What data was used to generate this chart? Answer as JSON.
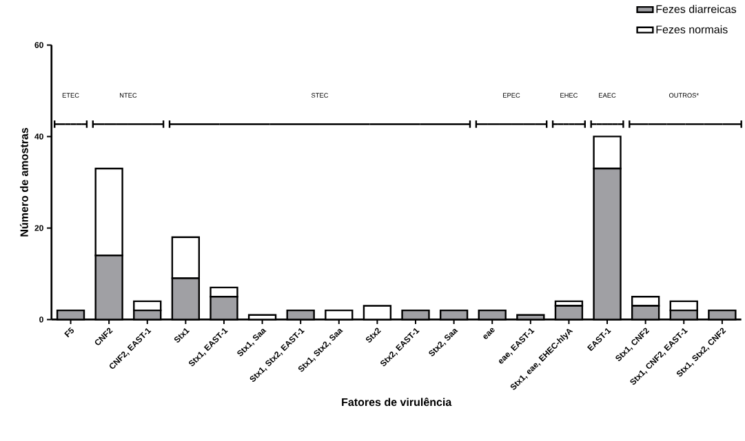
{
  "chart_data": {
    "type": "bar",
    "stacked": true,
    "xlabel": "Fatores de virulência",
    "ylabel": "Número de amostras",
    "categories": [
      "F5",
      "CNF2",
      "CNF2, EAST-1",
      "Stx1",
      "Stx1, EAST-1",
      "Stx1, Saa",
      "Stx1, Stx2, EAST-1",
      "Stx1, Stx2, Saa",
      "Stx2",
      "Stx2, EAST-1",
      "Stx2, Saa",
      "eae",
      "eae, EAST-1",
      "Stx1, eae, EHEC-hlyA",
      "EAST-1",
      "Stx1, CNF2",
      "Stx1, CNF2, EAST-1",
      "Stx1, Stx2, CNF2"
    ],
    "series": [
      {
        "name": "Fezes diarreicas",
        "color": "#a0a0a4",
        "values": [
          2,
          14,
          2,
          9,
          5,
          0,
          2,
          0,
          0,
          2,
          2,
          2,
          1,
          3,
          33,
          3,
          2,
          2
        ]
      },
      {
        "name": "Fezes normais",
        "color": "#ffffff",
        "values": [
          0,
          19,
          2,
          9,
          2,
          1,
          0,
          2,
          3,
          0,
          0,
          0,
          0,
          1,
          7,
          2,
          2,
          0
        ]
      }
    ],
    "ylim": [
      0,
      60
    ],
    "yticks": [
      0,
      20,
      40,
      60
    ],
    "grid": false,
    "legend": "top right",
    "annotations": [
      "ETEC",
      "NTEC",
      "STEC",
      "EPEC",
      "EHEC",
      "EAEC",
      "OUTROS*"
    ]
  }
}
